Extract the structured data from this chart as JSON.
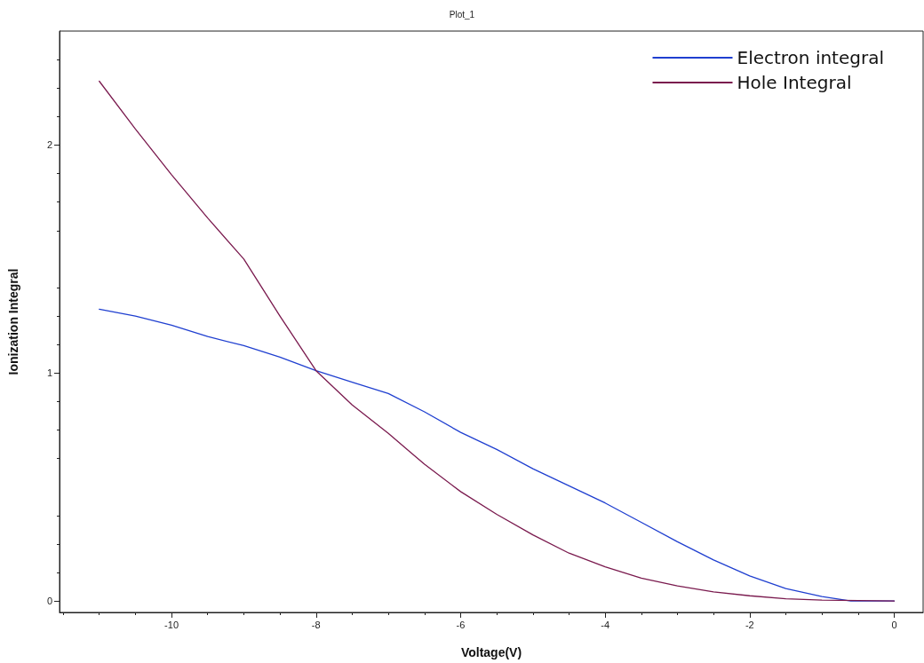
{
  "chart_data": {
    "type": "line",
    "title": "Plot_1",
    "xlabel": "Voltage(V)",
    "ylabel": "Ionization Integral",
    "xlim": [
      -11.55,
      0.4
    ],
    "xticks": [
      -10,
      -8,
      -6,
      -4,
      -2,
      0
    ],
    "ylim": [
      -0.05,
      2.5
    ],
    "yticks": [
      0,
      1,
      2
    ],
    "grid": false,
    "legend": "top right",
    "marker": "none",
    "line_style": "solid",
    "series": [
      {
        "name": "Electron integral",
        "color": "#1f3fd0",
        "x": [
          -11,
          -10.5,
          -10,
          -9.5,
          -9,
          -8.5,
          -8,
          -7.5,
          -7,
          -6.5,
          -6,
          -5.5,
          -5,
          -4.5,
          -4,
          -3.5,
          -3,
          -2.5,
          -2,
          -1.5,
          -1,
          -0.6,
          0
        ],
        "values": [
          1.28,
          1.25,
          1.21,
          1.16,
          1.12,
          1.07,
          1.01,
          0.96,
          0.91,
          0.83,
          0.74,
          0.665,
          0.58,
          0.505,
          0.43,
          0.345,
          0.26,
          0.18,
          0.11,
          0.055,
          0.02,
          0,
          0
        ]
      },
      {
        "name": "Hole Integral",
        "color": "#7a1a4e",
        "x": [
          -11,
          -10.5,
          -10,
          -9.5,
          -9,
          -8.5,
          -8,
          -7.5,
          -7,
          -6.5,
          -6,
          -5.5,
          -5,
          -4.5,
          -4,
          -3.5,
          -3,
          -2.5,
          -2,
          -1.5,
          -1,
          0
        ],
        "values": [
          2.28,
          2.07,
          1.87,
          1.68,
          1.5,
          1.25,
          1.01,
          0.86,
          0.735,
          0.6,
          0.48,
          0.38,
          0.29,
          0.21,
          0.15,
          0.1,
          0.066,
          0.04,
          0.023,
          0.01,
          0.004,
          0
        ]
      }
    ]
  }
}
